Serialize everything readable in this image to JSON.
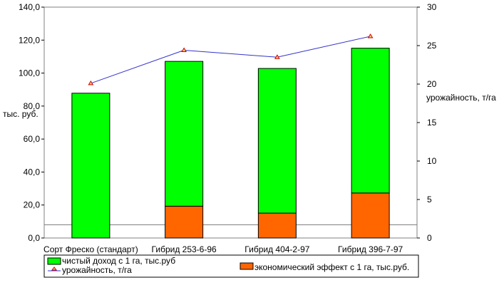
{
  "chart_data": {
    "type": "bar",
    "categories": [
      "Сорт Фреско (стандарт)",
      "Гибрид 253-6-96",
      "Гибрид 404-2-97",
      "Гибрид 396-7-97"
    ],
    "series": [
      {
        "name": "чистый доход с 1 га, тыс.руб",
        "values": [
          87.8,
          87.8,
          87.7,
          87.8
        ],
        "color": "#00ff00"
      },
      {
        "name": "экономический эффект с 1 га, тыс.руб.",
        "values": [
          0,
          19.3,
          15.1,
          27.3
        ],
        "color": "#ff6600"
      },
      {
        "name": "урожайность, т/га",
        "axis": "right",
        "type": "line",
        "values": [
          20.1,
          24.4,
          23.5,
          26.2
        ],
        "color": "#3333cc",
        "marker_color": "#cc0000"
      }
    ],
    "left_axis": {
      "label": "тыс. руб.",
      "ylim": [
        0,
        140
      ],
      "ticks": [
        "0,0",
        "20,0",
        "40,0",
        "60,0",
        "80,0",
        "100,0",
        "120,0",
        "140,0"
      ]
    },
    "right_axis": {
      "label": "урожайность, т/га",
      "ylim": [
        0,
        30
      ],
      "ticks": [
        "0",
        "5",
        "10",
        "15",
        "20",
        "25",
        "30"
      ]
    },
    "reference_line_left": 8,
    "legend": {
      "placement": "bottom",
      "items": [
        {
          "label": "чистый доход с 1 га, тыс.руб",
          "symbol": "box",
          "color": "#00ff00"
        },
        {
          "label": "урожайность, т/га",
          "symbol": "line",
          "color": "#3333cc"
        },
        {
          "label": "экономический эффект с 1 га, тыс.руб.",
          "symbol": "box",
          "color": "#ff6600"
        }
      ]
    },
    "grid": false
  }
}
